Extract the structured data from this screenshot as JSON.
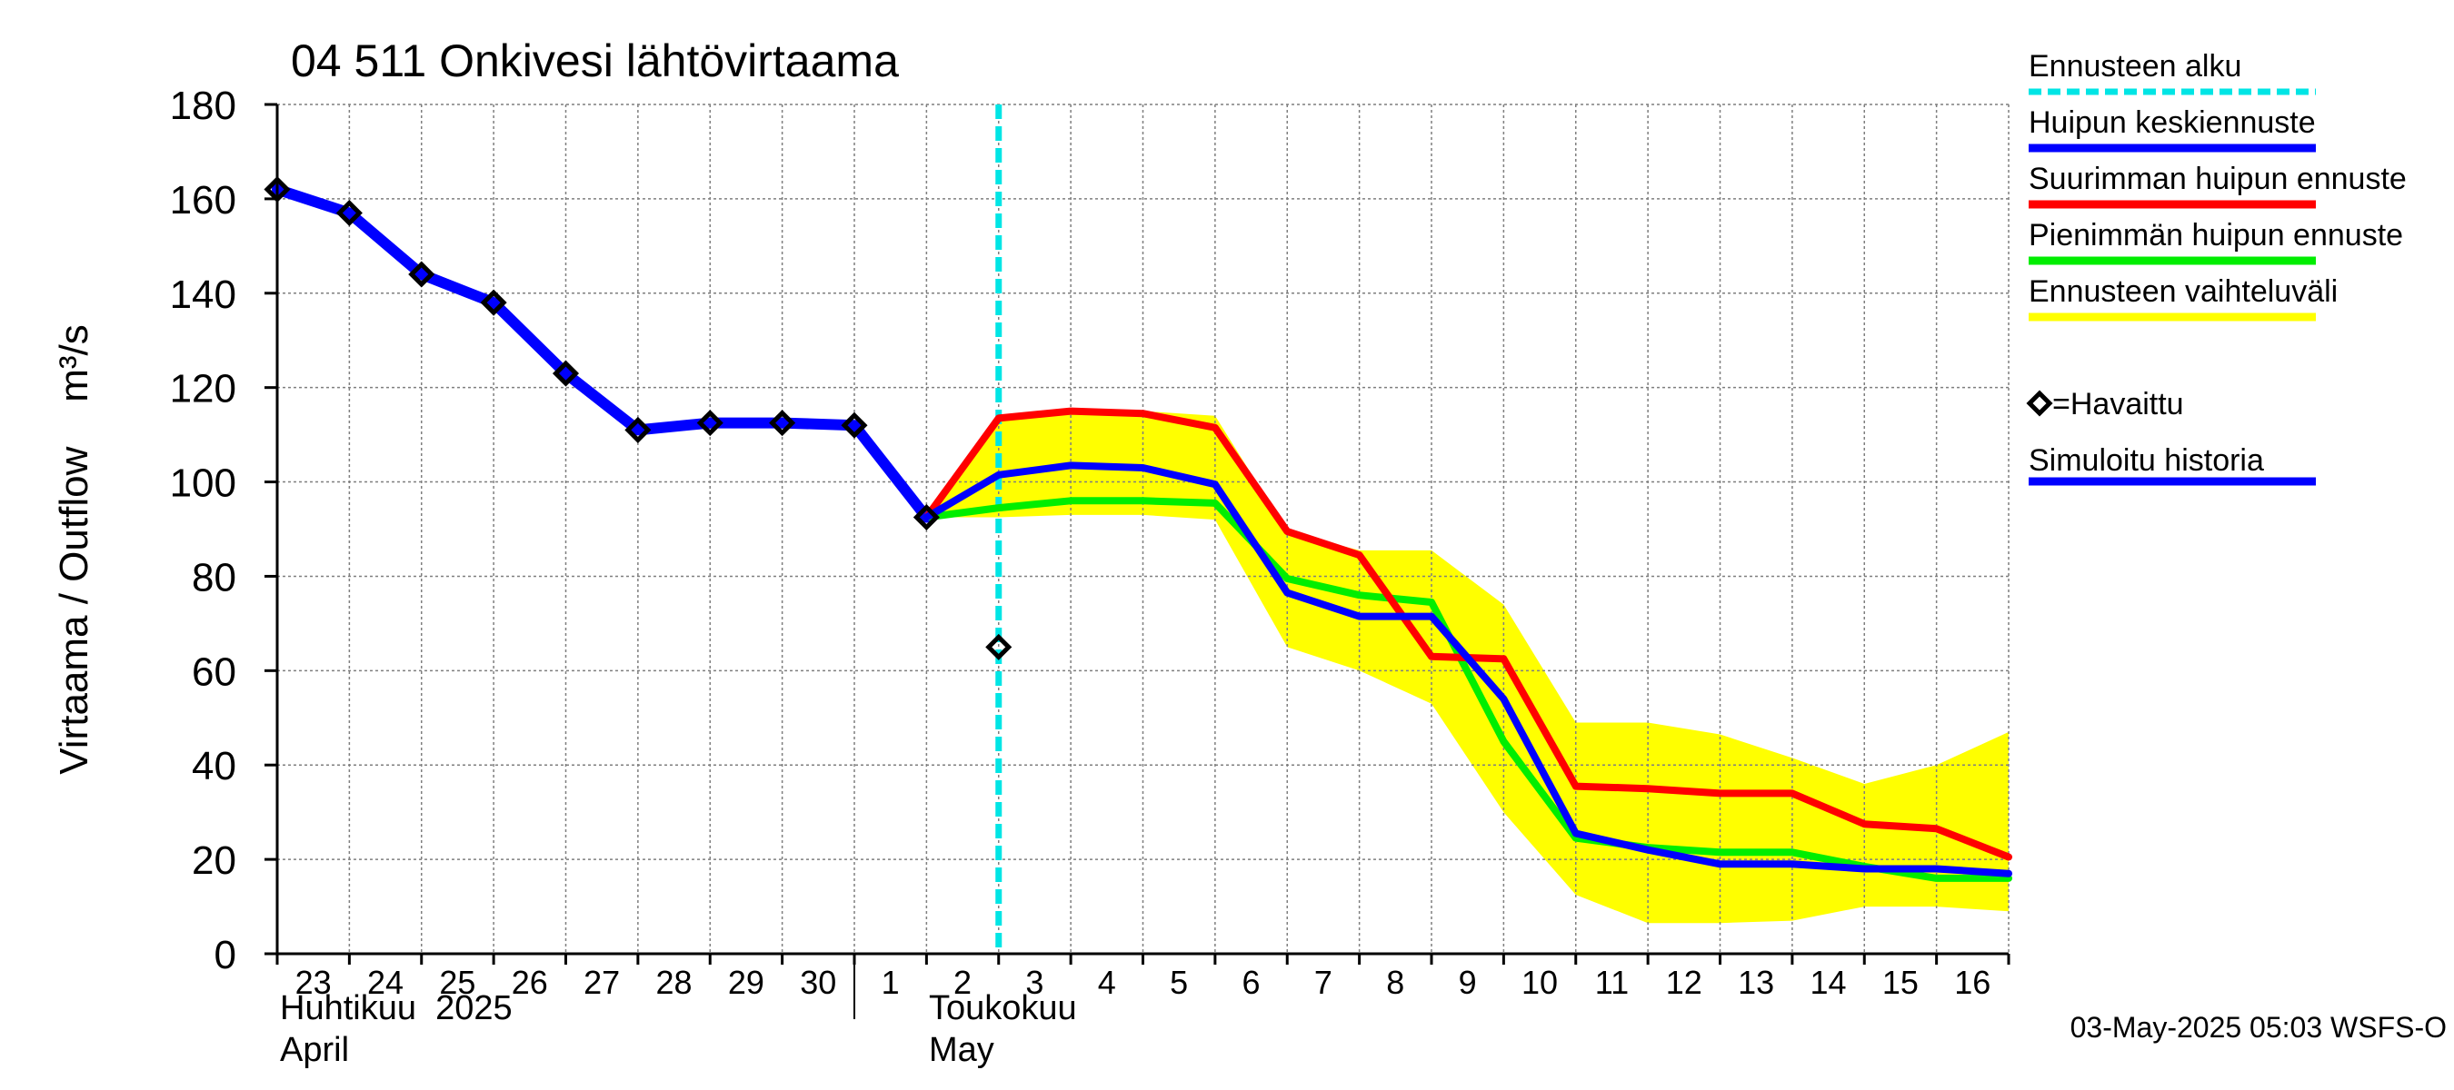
{
  "chart_data": {
    "type": "line",
    "title": "04 511 Onkivesi lähtövirtaama",
    "ylabel": "Virtaama / Outflow    m³/s",
    "ylim": [
      0,
      180
    ],
    "yticks": [
      0,
      20,
      40,
      60,
      80,
      100,
      120,
      140,
      160,
      180
    ],
    "x_day_labels": [
      "23",
      "24",
      "25",
      "26",
      "27",
      "28",
      "29",
      "30",
      "1",
      "2",
      "3",
      "4",
      "5",
      "6",
      "7",
      "8",
      "9",
      "10",
      "11",
      "12",
      "13",
      "14",
      "15",
      "16"
    ],
    "month_labels": [
      {
        "fi": "Huhtikuu  2025",
        "en": "April"
      },
      {
        "fi": "Toukokuu",
        "en": "May"
      }
    ],
    "x_dates": [
      "2025-04-23",
      "2025-04-24",
      "2025-04-25",
      "2025-04-26",
      "2025-04-27",
      "2025-04-28",
      "2025-04-29",
      "2025-04-30",
      "2025-05-01",
      "2025-05-02",
      "2025-05-03",
      "2025-05-04",
      "2025-05-05",
      "2025-05-06",
      "2025-05-07",
      "2025-05-08",
      "2025-05-09",
      "2025-05-10",
      "2025-05-11",
      "2025-05-12",
      "2025-05-13",
      "2025-05-14",
      "2025-05-15",
      "2025-05-16",
      "2025-05-17"
    ],
    "forecast_start": "2025-05-03",
    "grid": true,
    "legend_placement": "right",
    "observed": [
      {
        "x": "2025-04-23",
        "y": 162
      },
      {
        "x": "2025-04-24",
        "y": 157
      },
      {
        "x": "2025-04-25",
        "y": 144
      },
      {
        "x": "2025-04-26",
        "y": 138
      },
      {
        "x": "2025-04-27",
        "y": 123
      },
      {
        "x": "2025-04-28",
        "y": 111
      },
      {
        "x": "2025-04-29",
        "y": 112.5
      },
      {
        "x": "2025-04-30",
        "y": 112.5
      },
      {
        "x": "2025-05-01",
        "y": 112
      },
      {
        "x": "2025-05-02",
        "y": 92.5
      },
      {
        "x": "2025-05-03",
        "y": 65
      }
    ],
    "simulated_history": [
      {
        "x": "2025-04-23",
        "y": 162
      },
      {
        "x": "2025-04-24",
        "y": 157
      },
      {
        "x": "2025-04-25",
        "y": 144
      },
      {
        "x": "2025-04-26",
        "y": 138
      },
      {
        "x": "2025-04-27",
        "y": 123
      },
      {
        "x": "2025-04-28",
        "y": 111
      },
      {
        "x": "2025-04-29",
        "y": 112.5
      },
      {
        "x": "2025-04-30",
        "y": 112.5
      },
      {
        "x": "2025-05-01",
        "y": 112
      },
      {
        "x": "2025-05-02",
        "y": 92.5
      }
    ],
    "series": [
      {
        "name": "Huipun keskiennuste",
        "points": [
          {
            "x": "2025-05-02",
            "y": 92.5
          },
          {
            "x": "2025-05-03",
            "y": 101.5
          },
          {
            "x": "2025-05-04",
            "y": 103.5
          },
          {
            "x": "2025-05-05",
            "y": 103
          },
          {
            "x": "2025-05-06",
            "y": 99.5
          },
          {
            "x": "2025-05-07",
            "y": 76.5
          },
          {
            "x": "2025-05-08",
            "y": 71.5
          },
          {
            "x": "2025-05-09",
            "y": 71.5
          },
          {
            "x": "2025-05-10",
            "y": 54
          },
          {
            "x": "2025-05-11",
            "y": 25.5
          },
          {
            "x": "2025-05-12",
            "y": 22
          },
          {
            "x": "2025-05-13",
            "y": 19
          },
          {
            "x": "2025-05-14",
            "y": 19
          },
          {
            "x": "2025-05-15",
            "y": 18
          },
          {
            "x": "2025-05-16",
            "y": 18
          },
          {
            "x": "2025-05-17",
            "y": 17
          }
        ]
      },
      {
        "name": "Suurimman huipun ennuste",
        "points": [
          {
            "x": "2025-05-02",
            "y": 92.5
          },
          {
            "x": "2025-05-03",
            "y": 113.5
          },
          {
            "x": "2025-05-04",
            "y": 115
          },
          {
            "x": "2025-05-05",
            "y": 114.5
          },
          {
            "x": "2025-05-06",
            "y": 111.5
          },
          {
            "x": "2025-05-07",
            "y": 89.5
          },
          {
            "x": "2025-05-08",
            "y": 84.5
          },
          {
            "x": "2025-05-09",
            "y": 63
          },
          {
            "x": "2025-05-10",
            "y": 62.5
          },
          {
            "x": "2025-05-11",
            "y": 35.5
          },
          {
            "x": "2025-05-12",
            "y": 35
          },
          {
            "x": "2025-05-13",
            "y": 34
          },
          {
            "x": "2025-05-14",
            "y": 34
          },
          {
            "x": "2025-05-15",
            "y": 27.5
          },
          {
            "x": "2025-05-16",
            "y": 26.5
          },
          {
            "x": "2025-05-17",
            "y": 20.5
          }
        ]
      },
      {
        "name": "Pienimmän huipun ennuste",
        "points": [
          {
            "x": "2025-05-02",
            "y": 92.5
          },
          {
            "x": "2025-05-03",
            "y": 94.5
          },
          {
            "x": "2025-05-04",
            "y": 96
          },
          {
            "x": "2025-05-05",
            "y": 96
          },
          {
            "x": "2025-05-06",
            "y": 95.5
          },
          {
            "x": "2025-05-07",
            "y": 79.5
          },
          {
            "x": "2025-05-08",
            "y": 76
          },
          {
            "x": "2025-05-09",
            "y": 74.5
          },
          {
            "x": "2025-05-10",
            "y": 45
          },
          {
            "x": "2025-05-11",
            "y": 24.5
          },
          {
            "x": "2025-05-12",
            "y": 22.5
          },
          {
            "x": "2025-05-13",
            "y": 21.5
          },
          {
            "x": "2025-05-14",
            "y": 21.5
          },
          {
            "x": "2025-05-15",
            "y": 18.5
          },
          {
            "x": "2025-05-16",
            "y": 16
          },
          {
            "x": "2025-05-17",
            "y": 16
          }
        ]
      }
    ],
    "range_band": {
      "name": "Ennusteen vaihteluväli",
      "upper": [
        {
          "x": "2025-05-02",
          "y": 92.5
        },
        {
          "x": "2025-05-03",
          "y": 113.5
        },
        {
          "x": "2025-05-04",
          "y": 115
        },
        {
          "x": "2025-05-05",
          "y": 115
        },
        {
          "x": "2025-05-06",
          "y": 114
        },
        {
          "x": "2025-05-07",
          "y": 89.5
        },
        {
          "x": "2025-05-08",
          "y": 85.5
        },
        {
          "x": "2025-05-09",
          "y": 85.5
        },
        {
          "x": "2025-05-10",
          "y": 74
        },
        {
          "x": "2025-05-11",
          "y": 49
        },
        {
          "x": "2025-05-12",
          "y": 49
        },
        {
          "x": "2025-05-13",
          "y": 46.5
        },
        {
          "x": "2025-05-14",
          "y": 41.5
        },
        {
          "x": "2025-05-15",
          "y": 36
        },
        {
          "x": "2025-05-16",
          "y": 40
        },
        {
          "x": "2025-05-17",
          "y": 47
        }
      ],
      "lower": [
        {
          "x": "2025-05-02",
          "y": 92.5
        },
        {
          "x": "2025-05-03",
          "y": 92.5
        },
        {
          "x": "2025-05-04",
          "y": 93
        },
        {
          "x": "2025-05-05",
          "y": 93
        },
        {
          "x": "2025-05-06",
          "y": 92
        },
        {
          "x": "2025-05-07",
          "y": 65
        },
        {
          "x": "2025-05-08",
          "y": 60
        },
        {
          "x": "2025-05-09",
          "y": 53
        },
        {
          "x": "2025-05-10",
          "y": 30
        },
        {
          "x": "2025-05-11",
          "y": 12.5
        },
        {
          "x": "2025-05-12",
          "y": 6.5
        },
        {
          "x": "2025-05-13",
          "y": 6.5
        },
        {
          "x": "2025-05-14",
          "y": 7
        },
        {
          "x": "2025-05-15",
          "y": 10
        },
        {
          "x": "2025-05-16",
          "y": 10
        },
        {
          "x": "2025-05-17",
          "y": 9
        }
      ]
    }
  },
  "legend": {
    "items": [
      {
        "label": "Ennusteen alku",
        "color": "#00e5e5",
        "style": "dashed"
      },
      {
        "label": "Huipun keskiennuste",
        "color": "#0000ff",
        "style": "solid"
      },
      {
        "label": "Suurimman huipun ennuste",
        "color": "#ff0000",
        "style": "solid"
      },
      {
        "label": "Pienimmän huipun ennuste",
        "color": "#00ee00",
        "style": "solid"
      },
      {
        "label": "Ennusteen vaihteluväli",
        "color": "#ffff00",
        "style": "solid"
      },
      {
        "label": "=Havaittu",
        "color": "#000000",
        "style": "marker"
      },
      {
        "label": "Simuloitu historia",
        "color": "#0000ff",
        "style": "solid"
      }
    ]
  },
  "footer": {
    "timestamp": "03-May-2025 05:03 WSFS-O"
  },
  "colors": {
    "observed_marker": "#000000",
    "simulated": "#0000ff",
    "grid": "#7f7f7f",
    "forecast_start_line": "#00e5e5",
    "band": "#ffff00"
  }
}
